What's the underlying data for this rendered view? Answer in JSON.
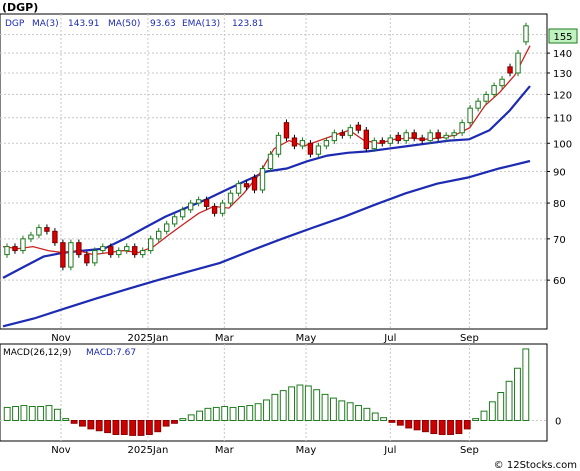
{
  "title": "(DGP)",
  "watermark": "© 12Stocks.com",
  "colors": {
    "up": "#1f7a1f",
    "down": "#dd0000",
    "ma_blue": "#1d2bb3",
    "ema_red": "#cc2222",
    "macd_pos": "#1f7a1f",
    "macd_neg": "#cc0000",
    "grid": "#c8c8c8",
    "last_price_box": "#bff2bf"
  },
  "legend": {
    "ticker": "DGP",
    "ma3_label": "MA(3)",
    "ma3_value": "143.91",
    "ma50_label": "MA(50)",
    "ma50_value": "93.63",
    "ema13_label": "EMA(13)",
    "ema13_value": "123.81"
  },
  "macd_legend": {
    "label": "MACD(26,12,9)",
    "value_label": "MACD:7.67"
  },
  "last_price": "155",
  "chart_data": [
    {
      "type": "candlestick",
      "x_labels": [
        "Nov",
        "2025Jan",
        "Mar",
        "May",
        "Jul",
        "Sep"
      ],
      "y_scale": "log",
      "y_ticks": [
        60,
        70,
        80,
        90,
        100,
        110,
        120,
        130,
        140,
        150
      ],
      "ylim": [
        50,
        162
      ],
      "grid": true,
      "candles": [
        {
          "o": 66,
          "c": 68
        },
        {
          "o": 68,
          "c": 67
        },
        {
          "o": 67,
          "c": 70
        },
        {
          "o": 70,
          "c": 71
        },
        {
          "o": 71,
          "c": 73
        },
        {
          "o": 73,
          "c": 72
        },
        {
          "o": 72,
          "c": 69
        },
        {
          "o": 69,
          "c": 63
        },
        {
          "o": 63,
          "c": 69
        },
        {
          "o": 69,
          "c": 66
        },
        {
          "o": 66,
          "c": 64
        },
        {
          "o": 64,
          "c": 67
        },
        {
          "o": 67,
          "c": 68
        },
        {
          "o": 68,
          "c": 66
        },
        {
          "o": 66,
          "c": 67
        },
        {
          "o": 67,
          "c": 68
        },
        {
          "o": 68,
          "c": 66
        },
        {
          "o": 66,
          "c": 67
        },
        {
          "o": 67,
          "c": 70
        },
        {
          "o": 70,
          "c": 72
        },
        {
          "o": 72,
          "c": 74
        },
        {
          "o": 74,
          "c": 76
        },
        {
          "o": 76,
          "c": 78
        },
        {
          "o": 78,
          "c": 80
        },
        {
          "o": 80,
          "c": 81
        },
        {
          "o": 81,
          "c": 79
        },
        {
          "o": 79,
          "c": 77
        },
        {
          "o": 77,
          "c": 80
        },
        {
          "o": 80,
          "c": 83
        },
        {
          "o": 83,
          "c": 86
        },
        {
          "o": 86,
          "c": 85
        },
        {
          "o": 88,
          "c": 84
        },
        {
          "o": 84,
          "c": 91
        },
        {
          "o": 91,
          "c": 96
        },
        {
          "o": 96,
          "c": 103
        },
        {
          "o": 108,
          "c": 102
        },
        {
          "o": 102,
          "c": 99
        },
        {
          "o": 99,
          "c": 101
        },
        {
          "o": 100,
          "c": 96
        },
        {
          "o": 96,
          "c": 99
        },
        {
          "o": 99,
          "c": 101
        },
        {
          "o": 101,
          "c": 104
        },
        {
          "o": 104,
          "c": 103
        },
        {
          "o": 103,
          "c": 106
        },
        {
          "o": 107,
          "c": 105
        },
        {
          "o": 105,
          "c": 98
        },
        {
          "o": 98,
          "c": 101
        },
        {
          "o": 101,
          "c": 100
        },
        {
          "o": 100,
          "c": 102
        },
        {
          "o": 103,
          "c": 101
        },
        {
          "o": 101,
          "c": 104
        },
        {
          "o": 104,
          "c": 102
        },
        {
          "o": 102,
          "c": 101
        },
        {
          "o": 101,
          "c": 104
        },
        {
          "o": 104,
          "c": 102
        },
        {
          "o": 102,
          "c": 103
        },
        {
          "o": 103,
          "c": 104
        },
        {
          "o": 104,
          "c": 108
        },
        {
          "o": 108,
          "c": 114
        },
        {
          "o": 114,
          "c": 117
        },
        {
          "o": 117,
          "c": 120
        },
        {
          "o": 120,
          "c": 124
        },
        {
          "o": 124,
          "c": 127
        },
        {
          "o": 133,
          "c": 130
        },
        {
          "o": 130,
          "c": 140
        },
        {
          "o": 146,
          "c": 155
        }
      ],
      "series": [
        {
          "name": "MA(50)",
          "values": [
            50.5,
            52,
            54,
            56,
            58,
            60,
            62,
            64,
            67,
            70,
            73,
            76,
            79.5,
            83,
            86,
            88,
            91,
            93.6
          ]
        },
        {
          "name": "EMA(13)",
          "values": [
            60.5,
            63,
            65.5,
            66.5,
            67,
            67.5,
            70,
            73,
            76,
            78.5,
            81,
            84,
            87,
            90,
            91,
            93.5,
            95.5,
            96.5,
            97,
            98,
            99,
            100,
            101,
            101.5,
            105,
            113,
            123.8
          ]
        },
        {
          "name": "MA(3)",
          "values": [
            68,
            67.5,
            68,
            67,
            66.5,
            67,
            66,
            66.5,
            67,
            66.5,
            68,
            71,
            74,
            77,
            79,
            78.5,
            83,
            89,
            98,
            101,
            99,
            101,
            103,
            105,
            101,
            100,
            101.5,
            102,
            101.5,
            102,
            103,
            106,
            115,
            121,
            129,
            143.9
          ]
        }
      ]
    },
    {
      "type": "bar",
      "title": "MACD(26,12,9)",
      "y_ticks": [
        0
      ],
      "values": [
        1.4,
        1.5,
        1.6,
        1.5,
        1.5,
        1.6,
        1.2,
        0.2,
        -0.3,
        -0.6,
        -0.9,
        -1.1,
        -1.3,
        -1.5,
        -1.5,
        -1.6,
        -1.6,
        -1.5,
        -1.2,
        -0.6,
        -0.3,
        0.2,
        0.6,
        1.0,
        1.3,
        1.4,
        1.5,
        1.4,
        1.5,
        1.6,
        1.8,
        2.2,
        2.8,
        3.2,
        3.6,
        3.8,
        3.7,
        3.3,
        2.8,
        2.4,
        2.1,
        1.9,
        1.6,
        1.3,
        0.8,
        0.3,
        -0.2,
        -0.5,
        -0.8,
        -1.0,
        -1.2,
        -1.4,
        -1.5,
        -1.5,
        -1.4,
        -0.9,
        0.2,
        1.0,
        2.0,
        3.0,
        4.2,
        5.6,
        7.67
      ],
      "ylim": [
        -2.2,
        8.2
      ]
    }
  ]
}
